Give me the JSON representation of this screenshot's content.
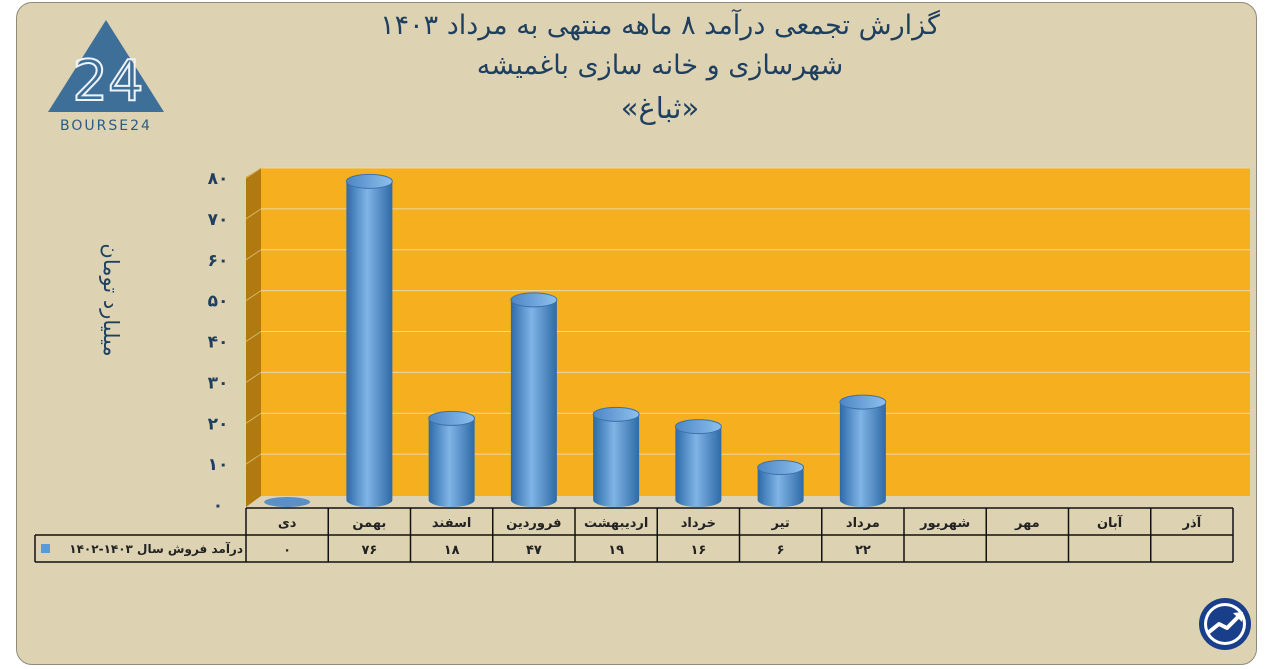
{
  "title": {
    "line1": "گزارش تجمعی درآمد ۸ ماهه منتهی به مرداد ۱۴۰۳",
    "line2": "شهرسازی و خانه سازی باغمیشه",
    "line3": "«ثباغ»"
  },
  "logo_text": "BOURSE24",
  "logo_digits": "24",
  "icons": {
    "logo": "bourse24-logo",
    "corner": "trend-up-circle-icon"
  },
  "colors": {
    "plot_bg": "#f6b01f",
    "wall_side": "#b07a10",
    "bar": "#5b9bd5",
    "text": "#1f3f5f",
    "panel": "#ddd3b3"
  },
  "chart_data": {
    "type": "bar",
    "ylabel": "میلیارد تومان",
    "ylim": [
      0,
      80
    ],
    "yticks": [
      "۰",
      "۱۰",
      "۲۰",
      "۳۰",
      "۴۰",
      "۵۰",
      "۶۰",
      "۷۰",
      "۸۰"
    ],
    "grid": true,
    "categories": [
      "دی",
      "بهمن",
      "اسفند",
      "فروردین",
      "اردیبهشت",
      "خرداد",
      "تیر",
      "مرداد",
      "شهریور",
      "مهر",
      "آبان",
      "آذر"
    ],
    "series": [
      {
        "name": "درآمد فروش سال ۱۴۰۳-۱۴۰۲",
        "values": [
          0,
          76,
          18,
          47,
          19,
          16,
          6,
          22,
          null,
          null,
          null,
          null
        ],
        "labels": [
          "۰",
          "۷۶",
          "۱۸",
          "۴۷",
          "۱۹",
          "۱۶",
          "۶",
          "۲۲",
          "",
          "",
          "",
          ""
        ]
      }
    ]
  }
}
